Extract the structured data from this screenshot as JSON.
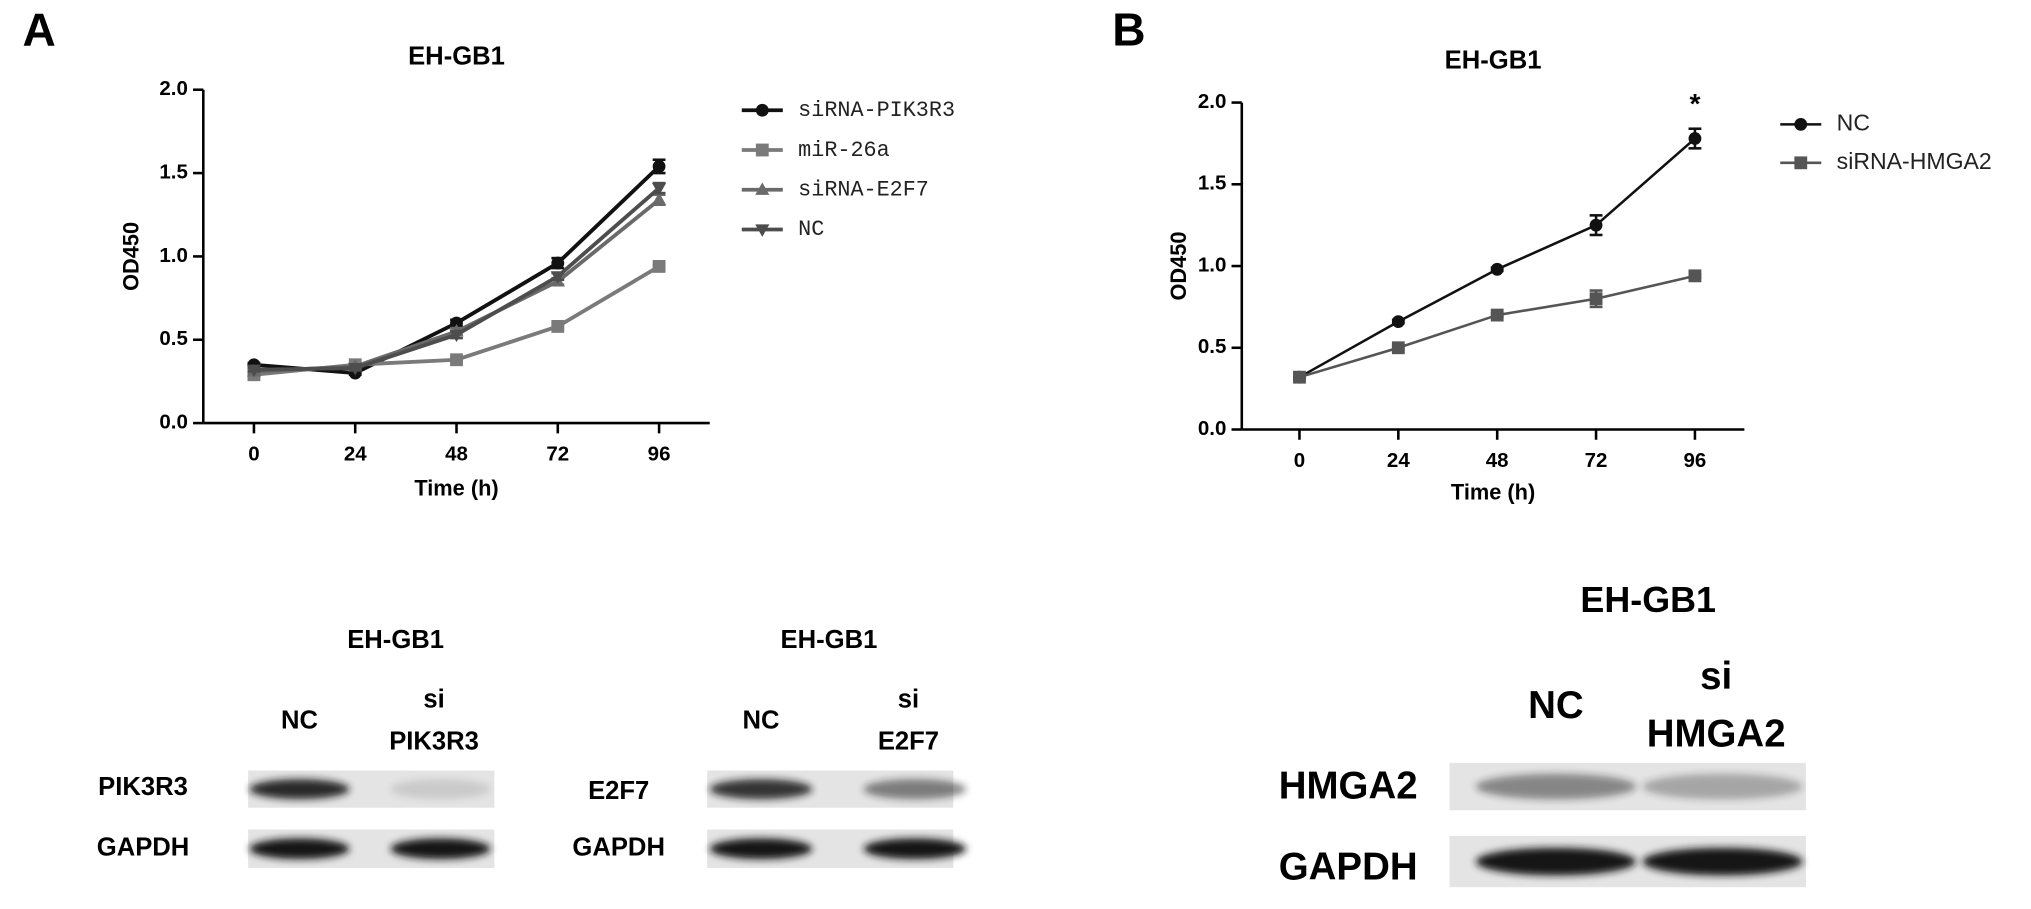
{
  "panels": [
    "A",
    "B"
  ],
  "chart_data": [
    {
      "type": "line",
      "title": "EH-GB1",
      "x_label": "Time (h)",
      "y_label": "OD450",
      "x": [
        0,
        24,
        48,
        72,
        96
      ],
      "xlim": [
        -12,
        108
      ],
      "xticks": [
        0,
        24,
        48,
        72,
        96
      ],
      "ylim": [
        0,
        2.0
      ],
      "yticks": [
        {
          "value": 0,
          "label": "0.0"
        },
        0.5,
        {
          "value": 1,
          "label": "1.0"
        },
        1.5,
        {
          "value": 2,
          "label": "2.0"
        }
      ],
      "series": [
        {
          "name": "siRNA-PIK3R3",
          "color": "#111111",
          "marker": "circle",
          "values": [
            0.35,
            0.3,
            0.6,
            0.96,
            1.54
          ],
          "errors": [
            0.01,
            0.01,
            0.02,
            0.03,
            0.04
          ]
        },
        {
          "name": "miR-26a",
          "color": "#7a7a7a",
          "marker": "square",
          "values": [
            0.29,
            0.35,
            0.38,
            0.58,
            0.94
          ],
          "errors": [
            0.01,
            0.01,
            0.01,
            0.01,
            0.01
          ]
        },
        {
          "name": "siRNA-E2F7",
          "color": "#6a6a6a",
          "marker": "triangle-up",
          "values": [
            0.31,
            0.34,
            0.55,
            0.85,
            1.34
          ],
          "errors": [
            0.01,
            0.01,
            0.02,
            0.02,
            0.03
          ]
        },
        {
          "name": "NC",
          "color": "#4d4d4d",
          "marker": "triangle-down",
          "values": [
            0.32,
            0.33,
            0.53,
            0.88,
            1.41
          ],
          "errors": [
            0.01,
            0.01,
            0.02,
            0.02,
            0.03
          ]
        }
      ]
    },
    {
      "type": "line",
      "title": "EH-GB1",
      "x_label": "Time (h)",
      "y_label": "OD450",
      "x": [
        0,
        24,
        48,
        72,
        96
      ],
      "xlim": [
        -14,
        108
      ],
      "xticks": [
        0,
        24,
        48,
        72,
        96
      ],
      "ylim": [
        0,
        2.0
      ],
      "yticks": [
        {
          "value": 0,
          "label": "0.0"
        },
        0.5,
        {
          "value": 1,
          "label": "1.0"
        },
        1.5,
        {
          "value": 2,
          "label": "2.0"
        }
      ],
      "annotations": [
        "*"
      ],
      "series": [
        {
          "name": "NC",
          "color": "#111111",
          "marker": "circle",
          "values": [
            0.32,
            0.66,
            0.98,
            1.25,
            1.78
          ],
          "errors": [
            0.01,
            0.01,
            0.01,
            0.06,
            0.06
          ]
        },
        {
          "name": "siRNA-HMGA2",
          "color": "#555555",
          "marker": "square",
          "values": [
            0.32,
            0.5,
            0.7,
            0.8,
            0.94
          ],
          "errors": [
            0.01,
            0.01,
            0.01,
            0.05,
            0.01
          ]
        }
      ]
    }
  ],
  "blots": [
    {
      "title": "EH-GB1",
      "lanes": [
        [
          "NC"
        ],
        [
          "si",
          "PIK3R3"
        ]
      ],
      "rows": [
        "PIK3R3",
        "GAPDH"
      ]
    },
    {
      "title": "EH-GB1",
      "lanes": [
        [
          "NC"
        ],
        [
          "si",
          "E2F7"
        ]
      ],
      "rows": [
        "E2F7",
        "GAPDH"
      ]
    },
    {
      "title": "EH-GB1",
      "lanes": [
        [
          "NC"
        ],
        [
          "si",
          "HMGA2"
        ]
      ],
      "rows": [
        "HMGA2",
        "GAPDH"
      ]
    }
  ]
}
